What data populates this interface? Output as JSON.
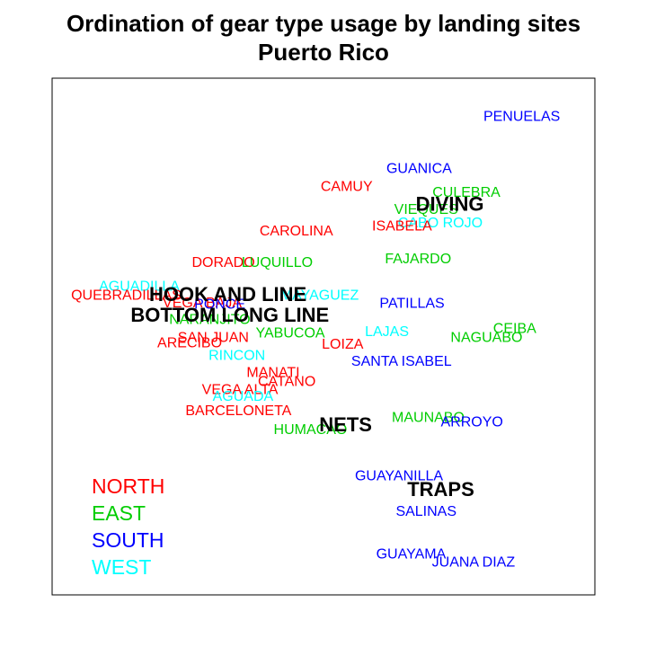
{
  "chart_data": {
    "type": "scatter",
    "title": "Ordination of gear type usage by landing sites",
    "subtitle": "Puerto Rico",
    "xlim": [
      0,
      1
    ],
    "ylim": [
      0,
      1
    ],
    "grid": false,
    "legend_position": "bottom-left",
    "region_colors": {
      "NORTH": "#ff0000",
      "EAST": "#00cd00",
      "SOUTH": "#0000ff",
      "WEST": "#00ffff"
    },
    "legend": [
      "NORTH",
      "EAST",
      "SOUTH",
      "WEST"
    ],
    "sites": [
      {
        "label": "PENUELAS",
        "region": "SOUTH",
        "x": 0.894,
        "y": 0.962
      },
      {
        "label": "GUANICA",
        "region": "SOUTH",
        "x": 0.69,
        "y": 0.854
      },
      {
        "label": "CULEBRA",
        "region": "EAST",
        "x": 0.784,
        "y": 0.804
      },
      {
        "label": "CAMUY",
        "region": "NORTH",
        "x": 0.546,
        "y": 0.816
      },
      {
        "label": "VIEQUES",
        "region": "EAST",
        "x": 0.704,
        "y": 0.769
      },
      {
        "label": "CABO ROJO",
        "region": "WEST",
        "x": 0.732,
        "y": 0.741
      },
      {
        "label": "ISABELA",
        "region": "NORTH",
        "x": 0.656,
        "y": 0.734
      },
      {
        "label": "CAROLINA",
        "region": "NORTH",
        "x": 0.446,
        "y": 0.724
      },
      {
        "label": "FAJARDO",
        "region": "EAST",
        "x": 0.688,
        "y": 0.666
      },
      {
        "label": "DORADO",
        "region": "NORTH",
        "x": 0.301,
        "y": 0.658
      },
      {
        "label": "LUQUILLO",
        "region": "EAST",
        "x": 0.408,
        "y": 0.658
      },
      {
        "label": "AGUADILLA",
        "region": "WEST",
        "x": 0.134,
        "y": 0.609
      },
      {
        "label": "MAYAGUEZ",
        "region": "WEST",
        "x": 0.492,
        "y": 0.59
      },
      {
        "label": "QUEBRADILLAS",
        "region": "NORTH",
        "x": 0.108,
        "y": 0.59
      },
      {
        "label": "VEGA BAJA",
        "region": "NORTH",
        "x": 0.259,
        "y": 0.574
      },
      {
        "label": "PONCE",
        "region": "SOUTH",
        "x": 0.294,
        "y": 0.571
      },
      {
        "label": "PATILLAS",
        "region": "SOUTH",
        "x": 0.676,
        "y": 0.573
      },
      {
        "label": "NARANJITO",
        "region": "EAST",
        "x": 0.274,
        "y": 0.54
      },
      {
        "label": "YABUCOA",
        "region": "EAST",
        "x": 0.434,
        "y": 0.512
      },
      {
        "label": "CEIBA",
        "region": "EAST",
        "x": 0.88,
        "y": 0.521
      },
      {
        "label": "LAJAS",
        "region": "WEST",
        "x": 0.626,
        "y": 0.514
      },
      {
        "label": "NAGUABO",
        "region": "EAST",
        "x": 0.824,
        "y": 0.502
      },
      {
        "label": "SAN JUAN",
        "region": "NORTH",
        "x": 0.281,
        "y": 0.502
      },
      {
        "label": "ARECIBO",
        "region": "NORTH",
        "x": 0.234,
        "y": 0.491
      },
      {
        "label": "LOIZA",
        "region": "NORTH",
        "x": 0.538,
        "y": 0.488
      },
      {
        "label": "RINCON",
        "region": "WEST",
        "x": 0.328,
        "y": 0.465
      },
      {
        "label": "SANTA ISABEL",
        "region": "SOUTH",
        "x": 0.655,
        "y": 0.453
      },
      {
        "label": "MANATI",
        "region": "NORTH",
        "x": 0.4,
        "y": 0.429
      },
      {
        "label": "CATANO",
        "region": "NORTH",
        "x": 0.427,
        "y": 0.411
      },
      {
        "label": "VEGA ALTA",
        "region": "NORTH",
        "x": 0.334,
        "y": 0.394
      },
      {
        "label": "AGUADA",
        "region": "WEST",
        "x": 0.34,
        "y": 0.38
      },
      {
        "label": "BARCELONETA",
        "region": "NORTH",
        "x": 0.331,
        "y": 0.35
      },
      {
        "label": "MAUNABO",
        "region": "EAST",
        "x": 0.708,
        "y": 0.336
      },
      {
        "label": "ARROYO",
        "region": "SOUTH",
        "x": 0.795,
        "y": 0.327
      },
      {
        "label": "HUMACAO",
        "region": "EAST",
        "x": 0.474,
        "y": 0.311
      },
      {
        "label": "GUAYANILLA",
        "region": "SOUTH",
        "x": 0.65,
        "y": 0.214
      },
      {
        "label": "SALINAS",
        "region": "SOUTH",
        "x": 0.704,
        "y": 0.141
      },
      {
        "label": "GUAYAMA",
        "region": "SOUTH",
        "x": 0.674,
        "y": 0.052
      },
      {
        "label": "JUANA DIAZ",
        "region": "SOUTH",
        "x": 0.798,
        "y": 0.035
      }
    ],
    "gear_types": [
      {
        "label": "DIVING",
        "x": 0.751,
        "y": 0.778
      },
      {
        "label": "HOOK AND LINE",
        "x": 0.31,
        "y": 0.59
      },
      {
        "label": "BOTTOM LONG LINE",
        "x": 0.314,
        "y": 0.547
      },
      {
        "label": "NETS",
        "x": 0.544,
        "y": 0.319
      },
      {
        "label": "TRAPS",
        "x": 0.733,
        "y": 0.185
      }
    ]
  }
}
